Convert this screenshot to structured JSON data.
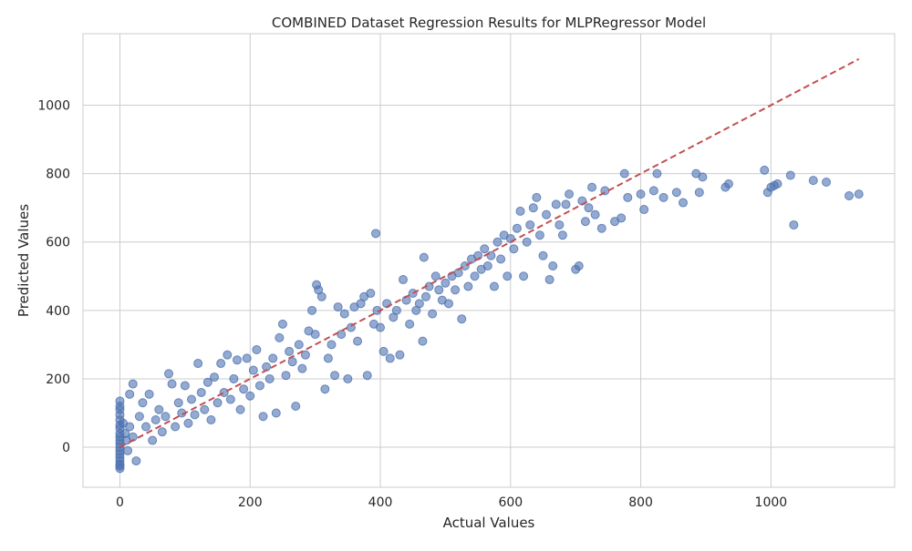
{
  "chart_data": {
    "type": "scatter",
    "title": "COMBINED Dataset Regression Results for MLPRegressor Model",
    "xlabel": "Actual Values",
    "ylabel": "Predicted Values",
    "xlim": [
      -56.7,
      1190
    ],
    "ylim": [
      -117,
      1209
    ],
    "xticks": [
      0,
      200,
      400,
      600,
      800,
      1000
    ],
    "yticks": [
      0,
      200,
      400,
      600,
      800,
      1000
    ],
    "grid": true,
    "point_color": "#4c72b0",
    "reference_line": {
      "style": "dashed",
      "color": "#c44e52",
      "from": [
        0,
        0
      ],
      "to": [
        1135,
        1135
      ]
    },
    "points": [
      [
        0,
        135
      ],
      [
        0,
        110
      ],
      [
        0,
        80
      ],
      [
        0,
        55
      ],
      [
        0,
        30
      ],
      [
        0,
        10
      ],
      [
        0,
        -10
      ],
      [
        0,
        -30
      ],
      [
        0,
        -50
      ],
      [
        0,
        -62
      ],
      [
        0,
        95
      ],
      [
        0,
        65
      ],
      [
        0,
        40
      ],
      [
        0,
        20
      ],
      [
        0,
        -20
      ],
      [
        0,
        -40
      ],
      [
        0,
        120
      ],
      [
        0,
        -55
      ],
      [
        5,
        70
      ],
      [
        8,
        40
      ],
      [
        10,
        20
      ],
      [
        12,
        -10
      ],
      [
        15,
        60
      ],
      [
        15,
        155
      ],
      [
        20,
        185
      ],
      [
        20,
        30
      ],
      [
        25,
        -40
      ],
      [
        30,
        90
      ],
      [
        35,
        130
      ],
      [
        40,
        60
      ],
      [
        45,
        155
      ],
      [
        50,
        20
      ],
      [
        55,
        80
      ],
      [
        60,
        110
      ],
      [
        65,
        45
      ],
      [
        70,
        90
      ],
      [
        75,
        215
      ],
      [
        80,
        185
      ],
      [
        85,
        60
      ],
      [
        90,
        130
      ],
      [
        95,
        100
      ],
      [
        100,
        180
      ],
      [
        105,
        70
      ],
      [
        110,
        140
      ],
      [
        115,
        95
      ],
      [
        120,
        245
      ],
      [
        125,
        160
      ],
      [
        130,
        110
      ],
      [
        135,
        190
      ],
      [
        140,
        80
      ],
      [
        145,
        205
      ],
      [
        150,
        130
      ],
      [
        155,
        245
      ],
      [
        160,
        160
      ],
      [
        165,
        270
      ],
      [
        170,
        140
      ],
      [
        175,
        200
      ],
      [
        180,
        255
      ],
      [
        185,
        110
      ],
      [
        190,
        170
      ],
      [
        195,
        260
      ],
      [
        200,
        150
      ],
      [
        205,
        225
      ],
      [
        210,
        285
      ],
      [
        215,
        180
      ],
      [
        220,
        90
      ],
      [
        225,
        235
      ],
      [
        230,
        200
      ],
      [
        235,
        260
      ],
      [
        240,
        100
      ],
      [
        245,
        320
      ],
      [
        250,
        360
      ],
      [
        255,
        210
      ],
      [
        260,
        280
      ],
      [
        265,
        250
      ],
      [
        270,
        120
      ],
      [
        275,
        300
      ],
      [
        280,
        230
      ],
      [
        285,
        270
      ],
      [
        290,
        340
      ],
      [
        295,
        400
      ],
      [
        300,
        330
      ],
      [
        302,
        475
      ],
      [
        305,
        460
      ],
      [
        310,
        440
      ],
      [
        315,
        170
      ],
      [
        320,
        260
      ],
      [
        325,
        300
      ],
      [
        330,
        210
      ],
      [
        335,
        410
      ],
      [
        340,
        330
      ],
      [
        345,
        390
      ],
      [
        350,
        200
      ],
      [
        355,
        350
      ],
      [
        360,
        410
      ],
      [
        365,
        310
      ],
      [
        370,
        420
      ],
      [
        375,
        440
      ],
      [
        380,
        210
      ],
      [
        385,
        450
      ],
      [
        390,
        360
      ],
      [
        393,
        625
      ],
      [
        395,
        400
      ],
      [
        400,
        350
      ],
      [
        405,
        280
      ],
      [
        410,
        420
      ],
      [
        415,
        260
      ],
      [
        420,
        380
      ],
      [
        425,
        400
      ],
      [
        430,
        270
      ],
      [
        435,
        490
      ],
      [
        440,
        430
      ],
      [
        445,
        360
      ],
      [
        450,
        450
      ],
      [
        455,
        400
      ],
      [
        460,
        420
      ],
      [
        465,
        310
      ],
      [
        467,
        555
      ],
      [
        470,
        440
      ],
      [
        475,
        470
      ],
      [
        480,
        390
      ],
      [
        485,
        500
      ],
      [
        490,
        460
      ],
      [
        495,
        430
      ],
      [
        500,
        480
      ],
      [
        505,
        420
      ],
      [
        510,
        500
      ],
      [
        515,
        460
      ],
      [
        520,
        510
      ],
      [
        525,
        375
      ],
      [
        530,
        530
      ],
      [
        535,
        470
      ],
      [
        540,
        550
      ],
      [
        545,
        500
      ],
      [
        550,
        560
      ],
      [
        555,
        520
      ],
      [
        560,
        580
      ],
      [
        565,
        530
      ],
      [
        570,
        560
      ],
      [
        575,
        470
      ],
      [
        580,
        600
      ],
      [
        585,
        550
      ],
      [
        590,
        620
      ],
      [
        595,
        500
      ],
      [
        600,
        610
      ],
      [
        605,
        580
      ],
      [
        610,
        640
      ],
      [
        615,
        690
      ],
      [
        620,
        500
      ],
      [
        625,
        600
      ],
      [
        630,
        650
      ],
      [
        635,
        700
      ],
      [
        640,
        730
      ],
      [
        645,
        620
      ],
      [
        650,
        560
      ],
      [
        655,
        680
      ],
      [
        660,
        490
      ],
      [
        665,
        530
      ],
      [
        670,
        710
      ],
      [
        675,
        650
      ],
      [
        680,
        620
      ],
      [
        685,
        710
      ],
      [
        690,
        740
      ],
      [
        700,
        520
      ],
      [
        705,
        530
      ],
      [
        710,
        720
      ],
      [
        715,
        660
      ],
      [
        720,
        700
      ],
      [
        725,
        760
      ],
      [
        730,
        680
      ],
      [
        740,
        640
      ],
      [
        745,
        750
      ],
      [
        760,
        660
      ],
      [
        770,
        670
      ],
      [
        775,
        800
      ],
      [
        780,
        730
      ],
      [
        800,
        740
      ],
      [
        805,
        695
      ],
      [
        820,
        750
      ],
      [
        825,
        800
      ],
      [
        835,
        730
      ],
      [
        855,
        745
      ],
      [
        865,
        715
      ],
      [
        885,
        800
      ],
      [
        890,
        745
      ],
      [
        895,
        790
      ],
      [
        930,
        760
      ],
      [
        935,
        770
      ],
      [
        990,
        810
      ],
      [
        995,
        745
      ],
      [
        1000,
        760
      ],
      [
        1005,
        765
      ],
      [
        1010,
        770
      ],
      [
        1030,
        795
      ],
      [
        1035,
        650
      ],
      [
        1065,
        780
      ],
      [
        1085,
        775
      ],
      [
        1120,
        735
      ],
      [
        1135,
        740
      ],
      [
        0,
        0
      ]
    ]
  }
}
